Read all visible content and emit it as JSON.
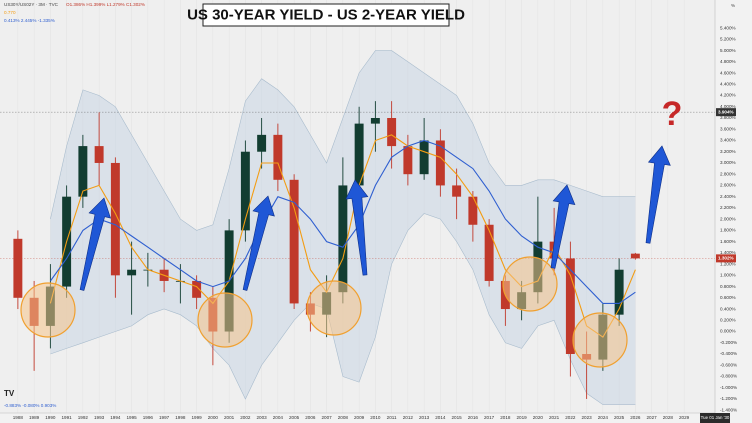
{
  "header": {
    "symbol": "US30Y/US02Y · 3M · TVC",
    "ohlc": "O1.386% H1.399% L1.279% C1.302%",
    "indicator_1": "0.770",
    "indicator_2": "0.413%  2.445%  -1.335%",
    "footer_values": "-0.883%  -0.080%  0.903%",
    "currency": "%",
    "date_label": "Tue 01 Jan '30",
    "logo": "TV"
  },
  "chart_data": {
    "type": "candlestick",
    "title": "US 30-YEAR YIELD - US 2-YEAR YIELD",
    "annotation": "?",
    "x": [
      1988,
      1989,
      1990,
      1991,
      1992,
      1993,
      1994,
      1995,
      1996,
      1997,
      1998,
      1999,
      2000,
      2001,
      2002,
      2003,
      2004,
      2005,
      2006,
      2007,
      2008,
      2009,
      2010,
      2011,
      2012,
      2013,
      2014,
      2015,
      2016,
      2017,
      2018,
      2019,
      2020,
      2021,
      2022,
      2023,
      2024,
      2025,
      2026
    ],
    "open": [
      1.65,
      0.6,
      0.1,
      0.8,
      2.4,
      3.3,
      3.0,
      1.0,
      1.1,
      1.1,
      0.9,
      0.9,
      0.6,
      0.0,
      1.8,
      3.2,
      3.5,
      2.7,
      0.5,
      0.3,
      0.7,
      2.6,
      3.7,
      3.8,
      3.3,
      2.8,
      3.4,
      2.6,
      2.4,
      1.9,
      0.9,
      0.4,
      0.7,
      1.6,
      1.3,
      -0.4,
      -0.5,
      0.3,
      1.386
    ],
    "high": [
      1.8,
      0.9,
      1.2,
      2.6,
      3.5,
      3.9,
      3.1,
      1.6,
      1.4,
      1.3,
      1.2,
      1.0,
      0.8,
      2.0,
      3.4,
      3.8,
      3.7,
      2.8,
      0.7,
      1.0,
      3.1,
      4.0,
      4.1,
      4.1,
      3.5,
      3.8,
      3.6,
      2.9,
      2.5,
      2.0,
      1.0,
      0.9,
      2.4,
      2.2,
      1.6,
      0.0,
      0.5,
      1.3,
      1.399
    ],
    "low": [
      0.4,
      -0.7,
      -0.3,
      0.6,
      2.2,
      2.6,
      0.6,
      0.3,
      0.8,
      0.7,
      0.5,
      0.4,
      -0.6,
      -0.2,
      1.6,
      2.9,
      2.5,
      0.4,
      0.0,
      -0.1,
      0.5,
      2.5,
      3.2,
      2.9,
      2.6,
      2.7,
      2.4,
      2.0,
      1.6,
      0.8,
      0.1,
      0.2,
      0.5,
      1.0,
      -0.8,
      -1.2,
      -0.7,
      0.1,
      1.279
    ],
    "close": [
      0.6,
      0.1,
      0.8,
      2.4,
      3.3,
      3.0,
      1.0,
      1.1,
      1.1,
      0.9,
      0.9,
      0.6,
      0.0,
      1.8,
      3.2,
      3.5,
      2.7,
      0.5,
      0.3,
      0.7,
      2.6,
      3.7,
      3.8,
      3.3,
      2.8,
      3.4,
      2.6,
      2.4,
      1.9,
      0.9,
      0.4,
      0.7,
      1.6,
      1.3,
      -0.4,
      -0.5,
      0.3,
      1.1,
      1.302
    ],
    "up_color": "#123d31",
    "down_color": "#c0392b",
    "moving_averages": [
      {
        "color": "#f39c12",
        "values": [
          null,
          null,
          0.5,
          1.6,
          2.5,
          2.6,
          2.1,
          1.5,
          1.1,
          1.0,
          0.9,
          0.8,
          0.5,
          0.9,
          2.0,
          3.0,
          3.0,
          2.2,
          1.1,
          0.7,
          1.3,
          2.6,
          3.4,
          3.5,
          3.3,
          3.2,
          3.1,
          2.8,
          2.4,
          1.8,
          1.1,
          0.8,
          0.9,
          1.5,
          1.0,
          0.1,
          -0.1,
          0.4,
          1.1
        ]
      },
      {
        "color": "#2f5fd0",
        "values": [
          null,
          null,
          0.9,
          1.3,
          1.8,
          2.0,
          1.9,
          1.7,
          1.5,
          1.3,
          1.1,
          0.9,
          0.8,
          0.9,
          1.3,
          1.9,
          2.4,
          2.3,
          2.0,
          1.6,
          1.5,
          1.9,
          2.6,
          3.1,
          3.3,
          3.4,
          3.3,
          3.1,
          2.9,
          2.5,
          2.0,
          1.7,
          1.5,
          1.4,
          1.1,
          0.8,
          0.5,
          0.5,
          0.7
        ]
      }
    ],
    "band": {
      "color": "#c9d6e3",
      "upper": [
        null,
        null,
        2.0,
        3.3,
        4.3,
        4.2,
        4.0,
        3.5,
        3.0,
        2.5,
        2.0,
        1.8,
        1.9,
        2.9,
        4.1,
        4.5,
        4.3,
        4.0,
        3.5,
        3.0,
        3.8,
        4.6,
        5.0,
        5.0,
        4.8,
        4.6,
        4.4,
        4.2,
        3.7,
        3.0,
        2.6,
        2.6,
        2.7,
        2.7,
        2.6,
        2.5,
        2.4,
        2.4,
        2.4
      ],
      "lower": [
        null,
        null,
        -0.4,
        -0.3,
        -0.2,
        -0.1,
        0.0,
        0.1,
        0.3,
        0.4,
        0.3,
        0.1,
        -0.3,
        -0.6,
        -1.2,
        -0.6,
        -0.2,
        0.2,
        0.5,
        0.4,
        -0.8,
        -0.9,
        -0.1,
        1.2,
        1.8,
        2.1,
        2.0,
        1.6,
        1.1,
        0.3,
        -0.2,
        -0.3,
        0.1,
        0.2,
        -0.5,
        -1.1,
        -1.3,
        -1.3,
        -1.3
      ]
    },
    "price_markers": [
      {
        "value": 3.904,
        "label": "3.904%",
        "color": "#333333"
      },
      {
        "value": 1.302,
        "label": "1.302%",
        "color": "#c0392b"
      }
    ],
    "xlim": [
      1986.9,
      2030.9
    ],
    "xticks": [
      1988,
      1989,
      1990,
      1991,
      1992,
      1993,
      1994,
      1995,
      1996,
      1997,
      1998,
      1999,
      2000,
      2001,
      2002,
      2003,
      2004,
      2005,
      2006,
      2007,
      2008,
      2009,
      2010,
      2011,
      2012,
      2013,
      2014,
      2015,
      2016,
      2017,
      2018,
      2019,
      2020,
      2021,
      2022,
      2023,
      2024,
      2025,
      2026,
      2027,
      2028,
      2029
    ],
    "ylim": [
      -1.45,
      5.9
    ],
    "yticks": [
      {
        "value": 5.4,
        "label": "5.400%"
      },
      {
        "value": 5.2,
        "label": "5.200%"
      },
      {
        "value": 5.0,
        "label": "5.000%"
      },
      {
        "value": 4.8,
        "label": "4.800%"
      },
      {
        "value": 4.6,
        "label": "4.600%"
      },
      {
        "value": 4.4,
        "label": "4.400%"
      },
      {
        "value": 4.2,
        "label": "4.200%"
      },
      {
        "value": 4.0,
        "label": "4.000%"
      },
      {
        "value": 3.8,
        "label": "3.800%"
      },
      {
        "value": 3.6,
        "label": "3.600%"
      },
      {
        "value": 3.4,
        "label": "3.400%"
      },
      {
        "value": 3.2,
        "label": "3.200%"
      },
      {
        "value": 3.0,
        "label": "3.000%"
      },
      {
        "value": 2.8,
        "label": "2.800%"
      },
      {
        "value": 2.6,
        "label": "2.600%"
      },
      {
        "value": 2.4,
        "label": "2.400%"
      },
      {
        "value": 2.2,
        "label": "2.200%"
      },
      {
        "value": 2.0,
        "label": "2.000%"
      },
      {
        "value": 1.8,
        "label": "1.800%"
      },
      {
        "value": 1.6,
        "label": "1.600%"
      },
      {
        "value": 1.4,
        "label": "1.400%"
      },
      {
        "value": 1.2,
        "label": "1.200%"
      },
      {
        "value": 1.0,
        "label": "1.000%"
      },
      {
        "value": 0.8,
        "label": "0.800%"
      },
      {
        "value": 0.6,
        "label": "0.600%"
      },
      {
        "value": 0.4,
        "label": "0.400%"
      },
      {
        "value": 0.2,
        "label": "0.200%"
      },
      {
        "value": 0.0,
        "label": "0.000%"
      },
      {
        "value": -0.2,
        "label": "-0.200%"
      },
      {
        "value": -0.4,
        "label": "-0.400%"
      },
      {
        "value": -0.6,
        "label": "-0.600%"
      },
      {
        "value": -0.8,
        "label": "-0.800%"
      },
      {
        "value": -1.0,
        "label": "-1.000%"
      },
      {
        "value": -1.2,
        "label": "-1.200%"
      },
      {
        "value": -1.4,
        "label": "-1.400%"
      }
    ],
    "grid": true
  }
}
